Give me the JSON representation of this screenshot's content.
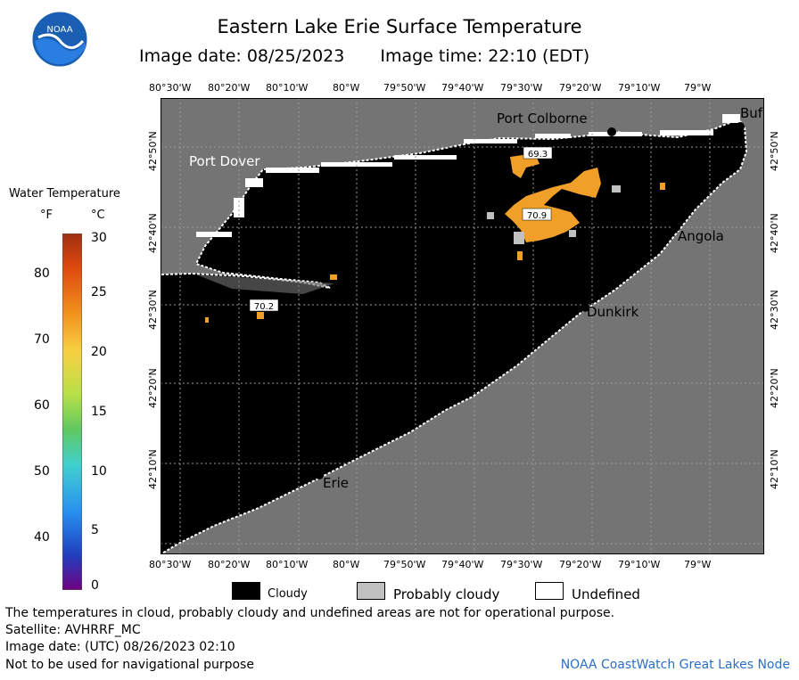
{
  "title": "Eastern Lake Erie Surface Temperature",
  "image_date_label": "Image date: 08/25/2023",
  "image_time_label": "Image time: 22:10 (EDT)",
  "logo_text": "NOAA",
  "longitude_ticks": [
    "80°30'W",
    "80°20'W",
    "80°10'W",
    "80°W",
    "79°50'W",
    "79°40'W",
    "79°30'W",
    "79°20'W",
    "79°10'W",
    "79°W"
  ],
  "latitude_ticks": [
    "42°50'N",
    "42°40'N",
    "42°30'N",
    "42°20'N",
    "42°10'N"
  ],
  "places": [
    {
      "name": "Port Colborne"
    },
    {
      "name": "Port Dover"
    },
    {
      "name": "Angola"
    },
    {
      "name": "Dunkirk"
    },
    {
      "name": "Erie"
    },
    {
      "name": "Buf"
    }
  ],
  "temperature_labels": [
    "69.3",
    "70.9",
    "70.2"
  ],
  "legend": {
    "title": "Water Temperature",
    "unit_f": "°F",
    "unit_c": "°C",
    "fahrenheit_ticks": [
      "80",
      "70",
      "60",
      "50",
      "40"
    ],
    "celsius_ticks": [
      "30",
      "25",
      "20",
      "15",
      "10",
      "5",
      "0"
    ]
  },
  "key": {
    "cloudy": "Cloudy",
    "probably_cloudy": "Probably cloudy",
    "undefined": "Undefined"
  },
  "colors": {
    "land": "#747474",
    "water": "#000000",
    "cloudy": "#000000",
    "probably_cloudy": "#c0c0c0",
    "undefined": "#ffffff",
    "warm_water": "#f0a028",
    "credit_text": "#2c6fc8"
  },
  "footer": {
    "disclaimer": "The temperatures in cloud, probably cloudy and undefined areas are not for operational purpose.",
    "satellite": "Satellite: AVHRRF_MC",
    "utc_date": "Image date: (UTC) 08/26/2023  02:10",
    "navigation": "Not to be used for navigational purpose",
    "credit": "NOAA CoastWatch Great Lakes Node"
  }
}
